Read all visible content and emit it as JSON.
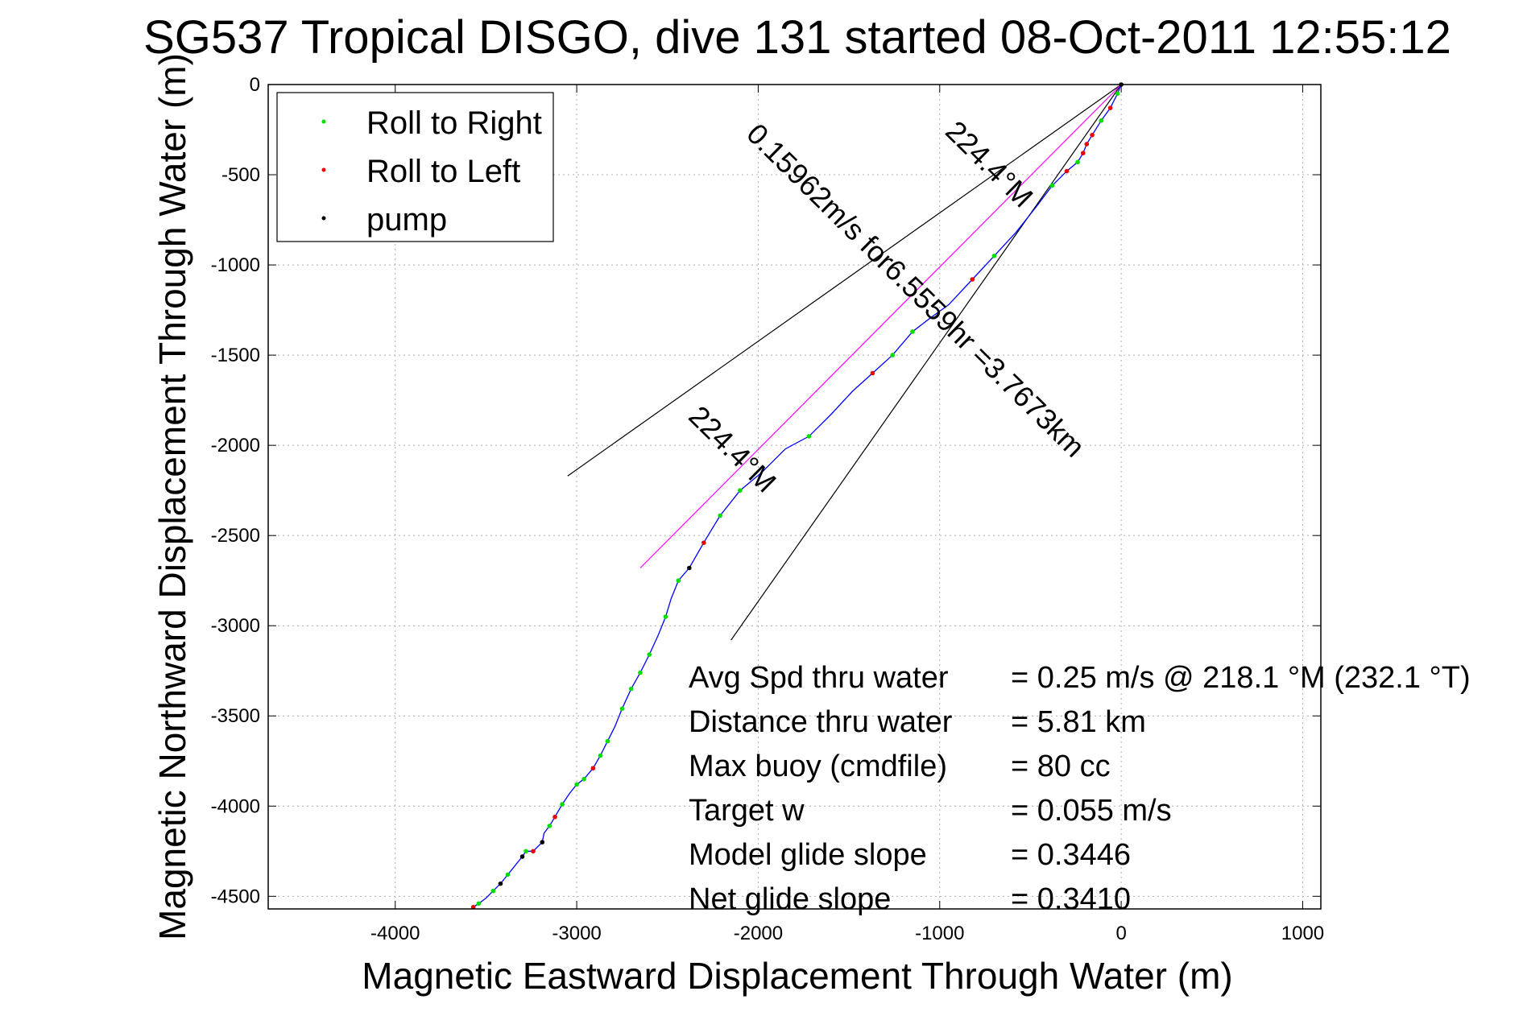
{
  "chart_data": {
    "type": "scatter",
    "title": "SG537 Tropical DISGO, dive 131 started 08-Oct-2011 12:55:12",
    "xlabel": "Magnetic Eastward Displacement Through Water (m)",
    "ylabel": "Magnetic Northward Displacement Through Water (m)",
    "xlim": [
      -4700,
      1100
    ],
    "ylim": [
      -4570,
      0
    ],
    "x_ticks": [
      -4000,
      -3000,
      -2000,
      -1000,
      0,
      1000
    ],
    "y_ticks": [
      0,
      -500,
      -1000,
      -1500,
      -2000,
      -2500,
      -3000,
      -3500,
      -4000,
      -4500
    ],
    "x_tick_labels": [
      "-4000",
      "-3000",
      "-2000",
      "-1000",
      "0",
      "1000"
    ],
    "y_tick_labels": [
      "0",
      "-500",
      "-1000",
      "-1500",
      "-2000",
      "-2500",
      "-3000",
      "-3500",
      "-4000",
      "-4500"
    ],
    "grid": true,
    "legend_position": "top-left",
    "legend": [
      {
        "name": "Roll to Right",
        "color": "#00dd00"
      },
      {
        "name": "Roll to Left",
        "color": "#ee0000"
      },
      {
        "name": "pump",
        "color": "#000000"
      }
    ],
    "track": {
      "color": "#0000ff",
      "x": [
        0,
        -20,
        -60,
        -110,
        -160,
        -190,
        -210,
        -240,
        -300,
        -380,
        -470,
        -580,
        -700,
        -820,
        -950,
        -1060,
        -1150,
        -1260,
        -1370,
        -1480,
        -1600,
        -1720,
        -1850,
        -1980,
        -2100,
        -2210,
        -2300,
        -2380,
        -2440,
        -2480,
        -2510,
        -2550,
        -2600,
        -2650,
        -2700,
        -2750,
        -2790,
        -2830,
        -2870,
        -2910,
        -2960,
        -3000,
        -3040,
        -3080,
        -3120,
        -3150,
        -3180,
        -3190,
        -3240,
        -3280,
        -3300,
        -3340,
        -3380,
        -3420,
        -3460,
        -3500,
        -3540,
        -3570
      ],
      "y": [
        0,
        -50,
        -130,
        -200,
        -280,
        -330,
        -380,
        -430,
        -480,
        -560,
        -680,
        -820,
        -950,
        -1080,
        -1220,
        -1300,
        -1370,
        -1500,
        -1600,
        -1700,
        -1830,
        -1950,
        -2020,
        -2150,
        -2250,
        -2390,
        -2540,
        -2680,
        -2750,
        -2850,
        -2950,
        -3050,
        -3160,
        -3260,
        -3350,
        -3460,
        -3560,
        -3640,
        -3720,
        -3790,
        -3850,
        -3880,
        -3930,
        -3990,
        -4060,
        -4110,
        -4150,
        -4200,
        -4250,
        -4250,
        -4280,
        -4330,
        -4380,
        -4430,
        -4470,
        -4510,
        -4540,
        -4560
      ]
    },
    "roll_right": {
      "color": "#00dd00",
      "x": [
        -20,
        -110,
        -240,
        -380,
        -700,
        -1150,
        -1260,
        -1720,
        -2100,
        -2210,
        -2440,
        -2510,
        -2600,
        -2650,
        -2700,
        -2750,
        -2830,
        -2870,
        -2960,
        -3000,
        -3080,
        -3150,
        -3280,
        -3380,
        -3460,
        -3540
      ],
      "y": [
        -50,
        -200,
        -430,
        -560,
        -950,
        -1370,
        -1500,
        -1950,
        -2250,
        -2390,
        -2750,
        -2950,
        -3160,
        -3260,
        -3350,
        -3460,
        -3640,
        -3720,
        -3850,
        -3880,
        -3990,
        -4110,
        -4250,
        -4380,
        -4470,
        -4540
      ]
    },
    "roll_left": {
      "color": "#ee0000",
      "x": [
        -60,
        -160,
        -190,
        -210,
        -300,
        -820,
        -1370,
        -2300,
        -2910,
        -3120,
        -3240,
        -3570
      ],
      "y": [
        -130,
        -280,
        -330,
        -380,
        -480,
        -1080,
        -1600,
        -2540,
        -3790,
        -4060,
        -4250,
        -4560
      ]
    },
    "pump": {
      "color": "#000000",
      "x": [
        0,
        -2380,
        -3190,
        -3300,
        -3420
      ],
      "y": [
        0,
        -2680,
        -4200,
        -4280,
        -4430
      ]
    },
    "reference_lines": [
      {
        "color": "#000000",
        "x": [
          0,
          -3050
        ],
        "y": [
          0,
          -2170
        ]
      },
      {
        "color": "#000000",
        "x": [
          0,
          -2150
        ],
        "y": [
          0,
          -3080
        ]
      },
      {
        "color": "#ff00ff",
        "x": [
          0,
          -2650
        ],
        "y": [
          0,
          -2680
        ]
      }
    ],
    "annotations": [
      {
        "text": "0.15962m/s for6.5559hr =3.7673km",
        "x": -1170,
        "y": -1180,
        "rotate": 44.6
      },
      {
        "text": "224.4°M",
        "x": -765,
        "y": -480,
        "rotate": 44.6
      },
      {
        "text": "224.4°M",
        "x": -2180,
        "y": -2060,
        "rotate": 44.6
      }
    ],
    "stats": [
      {
        "label": "Avg Spd thru water",
        "value": "=  0.25 m/s @ 218.1 °M (232.1 °T)"
      },
      {
        "label": "Distance thru water",
        "value": "=  5.81 km"
      },
      {
        "label": "Max buoy (cmdfile)",
        "value": "= 80 cc"
      },
      {
        "label": "Target w",
        "value": "= 0.055 m/s"
      },
      {
        "label": "Model glide slope",
        "value": "= 0.3446"
      },
      {
        "label": "Net glide slope",
        "value": "= 0.3410"
      }
    ]
  }
}
